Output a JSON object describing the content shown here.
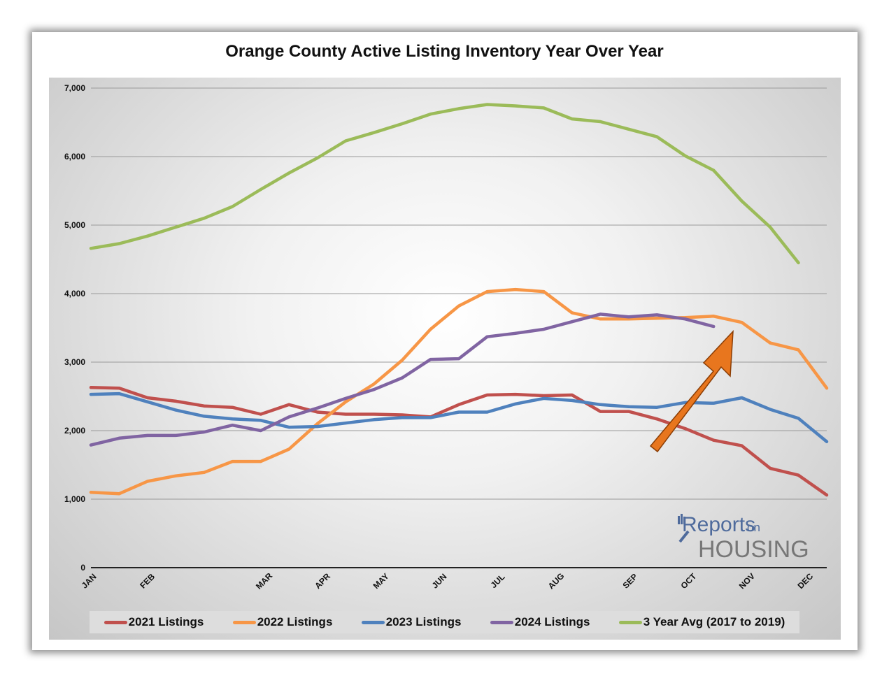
{
  "title": "Orange County Active Listing Inventory Year Over Year",
  "logo": {
    "line1": "Reports",
    "line1_small": "on",
    "line2": "HOUSING"
  },
  "chart_data": {
    "type": "line",
    "x_tick_labels": [
      "JAN",
      "FEB",
      "MAR",
      "APR",
      "MAY",
      "JUN",
      "JUL",
      "AUG",
      "SEP",
      "OCT",
      "NOV",
      "DEC"
    ],
    "ylim": [
      0,
      7000
    ],
    "y_tick_labels": [
      "0",
      "1,000",
      "2,000",
      "3,000",
      "4,000",
      "5,000",
      "6,000",
      "7,000"
    ],
    "grid": true,
    "legend_position": "bottom",
    "series": [
      {
        "name": "2021 Listings",
        "color": "#c0504d",
        "values": [
          2630,
          2620,
          2480,
          2430,
          2360,
          2340,
          2240,
          2380,
          2270,
          2240,
          2240,
          2230,
          2200,
          2380,
          2520,
          2530,
          2510,
          2520,
          2280,
          2280,
          2170,
          2030,
          1860,
          1780,
          1450,
          1350,
          1060
        ]
      },
      {
        "name": "2022 Listings",
        "color": "#f79646",
        "values": [
          1100,
          1080,
          1260,
          1340,
          1390,
          1550,
          1550,
          1730,
          2100,
          2420,
          2680,
          3030,
          3480,
          3820,
          4030,
          4060,
          4030,
          3720,
          3630,
          3630,
          3640,
          3650,
          3670,
          3580,
          3280,
          3180,
          2620
        ]
      },
      {
        "name": "2023 Listings",
        "color": "#4f81bd",
        "values": [
          2530,
          2540,
          2420,
          2300,
          2210,
          2170,
          2150,
          2050,
          2060,
          2110,
          2160,
          2190,
          2190,
          2270,
          2270,
          2390,
          2470,
          2440,
          2380,
          2350,
          2340,
          2410,
          2400,
          2480,
          2310,
          2180,
          1840
        ]
      },
      {
        "name": "2024 Listings",
        "color": "#8064a2",
        "values": [
          1790,
          1890,
          1930,
          1930,
          1980,
          2080,
          2000,
          2200,
          2330,
          2470,
          2600,
          2770,
          3040,
          3050,
          3370,
          3420,
          3480,
          3590,
          3700,
          3660,
          3690,
          3630,
          3520
        ]
      },
      {
        "name": "3 Year Avg (2017 to 2019)",
        "color": "#9bbb59",
        "values": [
          4660,
          4730,
          4840,
          4970,
          5100,
          5270,
          5520,
          5760,
          5980,
          6230,
          6350,
          6480,
          6620,
          6700,
          6760,
          6740,
          6710,
          6550,
          6510,
          6400,
          6290,
          6010,
          5800,
          5350,
          4970,
          4450
        ]
      }
    ]
  }
}
